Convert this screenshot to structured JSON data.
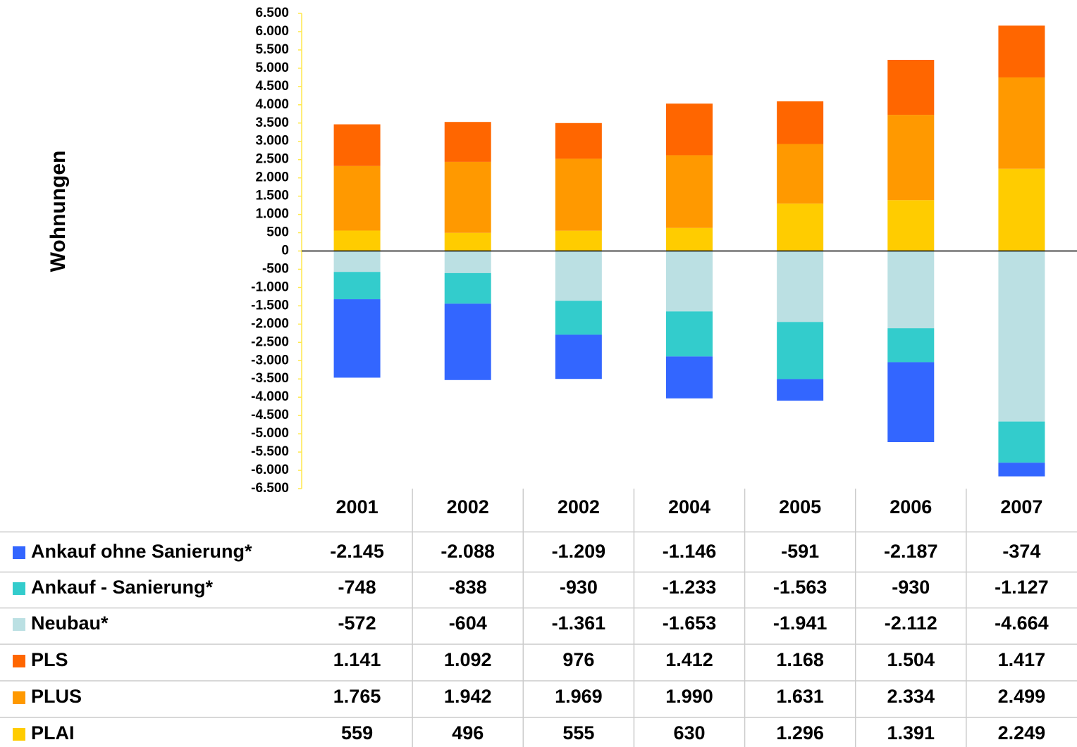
{
  "chart_data": {
    "type": "bar",
    "stacked": true,
    "ylabel": "Wohnungen",
    "categories": [
      "2001",
      "2002",
      "2002",
      "2004",
      "2005",
      "2006",
      "2007"
    ],
    "series": [
      {
        "name": "Ankauf ohne Sanierung*",
        "color": "#3366ff",
        "values": [
          -2145,
          -2088,
          -1209,
          -1146,
          -591,
          -2187,
          -374
        ],
        "value_labels": [
          "-2.145",
          "-2.088",
          "-1.209",
          "-1.146",
          "-591",
          "-2.187",
          "-374"
        ]
      },
      {
        "name": "Ankauf - Sanierung*",
        "color": "#33cccc",
        "values": [
          -748,
          -838,
          -930,
          -1233,
          -1563,
          -930,
          -1127
        ],
        "value_labels": [
          "-748",
          "-838",
          "-930",
          "-1.233",
          "-1.563",
          "-930",
          "-1.127"
        ]
      },
      {
        "name": "Neubau*",
        "color": "#bbe0e3",
        "values": [
          -572,
          -604,
          -1361,
          -1653,
          -1941,
          -2112,
          -4664
        ],
        "value_labels": [
          "-572",
          "-604",
          "-1.361",
          "-1.653",
          "-1.941",
          "-2.112",
          "-4.664"
        ]
      },
      {
        "name": "PLS",
        "color": "#ff6600",
        "values": [
          1141,
          1092,
          976,
          1412,
          1168,
          1504,
          1417
        ],
        "value_labels": [
          "1.141",
          "1.092",
          "976",
          "1.412",
          "1.168",
          "1.504",
          "1.417"
        ]
      },
      {
        "name": "PLUS",
        "color": "#ff9900",
        "values": [
          1765,
          1942,
          1969,
          1990,
          1631,
          2334,
          2499
        ],
        "value_labels": [
          "1.765",
          "1.942",
          "1.969",
          "1.990",
          "1.631",
          "2.334",
          "2.499"
        ]
      },
      {
        "name": "PLAI",
        "color": "#ffcc00",
        "values": [
          559,
          496,
          555,
          630,
          1296,
          1391,
          2249
        ],
        "value_labels": [
          "559",
          "496",
          "555",
          "630",
          "1.296",
          "1.391",
          "2.249"
        ]
      }
    ],
    "ylim": [
      -6500,
      6500
    ],
    "yticks": [
      {
        "value": 6500,
        "label": "6.500"
      },
      {
        "value": 6000,
        "label": "6.000"
      },
      {
        "value": 5500,
        "label": "5.500"
      },
      {
        "value": 5000,
        "label": "5.000"
      },
      {
        "value": 4500,
        "label": "4.500"
      },
      {
        "value": 4000,
        "label": "4.000"
      },
      {
        "value": 3500,
        "label": "3.500"
      },
      {
        "value": 3000,
        "label": "3.000"
      },
      {
        "value": 2500,
        "label": "2.500"
      },
      {
        "value": 2000,
        "label": "2.000"
      },
      {
        "value": 1500,
        "label": "1.500"
      },
      {
        "value": 1000,
        "label": "1.000"
      },
      {
        "value": 500,
        "label": "500"
      },
      {
        "value": 0,
        "label": "0"
      },
      {
        "value": -500,
        "label": "-500"
      },
      {
        "value": -1000,
        "label": "-1.000"
      },
      {
        "value": -1500,
        "label": "-1.500"
      },
      {
        "value": -2000,
        "label": "-2.000"
      },
      {
        "value": -2500,
        "label": "-2.500"
      },
      {
        "value": -3000,
        "label": "-3.000"
      },
      {
        "value": -3500,
        "label": "-3.500"
      },
      {
        "value": -4000,
        "label": "-4.000"
      },
      {
        "value": -4500,
        "label": "-4.500"
      },
      {
        "value": -5000,
        "label": "-5.000"
      },
      {
        "value": -5500,
        "label": "-5.500"
      },
      {
        "value": -6000,
        "label": "-6.000"
      },
      {
        "value": -6500,
        "label": "-6.500"
      }
    ]
  }
}
